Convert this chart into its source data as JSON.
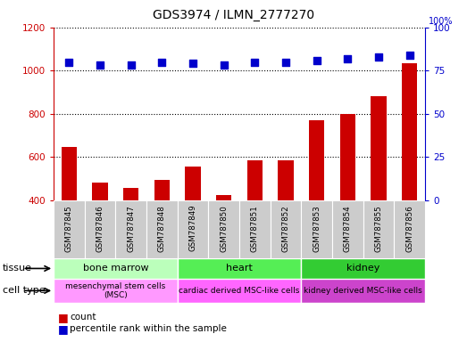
{
  "title": "GDS3974 / ILMN_2777270",
  "samples": [
    "GSM787845",
    "GSM787846",
    "GSM787847",
    "GSM787848",
    "GSM787849",
    "GSM787850",
    "GSM787851",
    "GSM787852",
    "GSM787853",
    "GSM787854",
    "GSM787855",
    "GSM787856"
  ],
  "counts": [
    645,
    480,
    455,
    495,
    555,
    425,
    585,
    585,
    770,
    800,
    880,
    1035
  ],
  "percentiles": [
    80,
    78,
    78,
    80,
    79,
    78,
    80,
    80,
    81,
    82,
    83,
    84
  ],
  "ylim_left": [
    400,
    1200
  ],
  "ylim_right": [
    0,
    100
  ],
  "yticks_left": [
    400,
    600,
    800,
    1000,
    1200
  ],
  "yticks_right": [
    0,
    25,
    50,
    75,
    100
  ],
  "bar_color": "#cc0000",
  "dot_color": "#0000cc",
  "tissue_groups": [
    {
      "label": "bone marrow",
      "start": 0,
      "end": 3,
      "color": "#bbffbb"
    },
    {
      "label": "heart",
      "start": 4,
      "end": 7,
      "color": "#55ee55"
    },
    {
      "label": "kidney",
      "start": 8,
      "end": 11,
      "color": "#33cc33"
    }
  ],
  "celltype_groups": [
    {
      "label": "mesenchymal stem cells\n(MSC)",
      "start": 0,
      "end": 3,
      "color": "#ff99ff"
    },
    {
      "label": "cardiac derived MSC-like cells",
      "start": 4,
      "end": 7,
      "color": "#ff66ff"
    },
    {
      "label": "kidney derived MSC-like cells",
      "start": 8,
      "end": 11,
      "color": "#cc44cc"
    }
  ],
  "tissue_label": "tissue",
  "celltype_label": "cell type",
  "legend_count": "count",
  "legend_pct": "percentile rank within the sample",
  "sample_bg_color": "#cccccc"
}
